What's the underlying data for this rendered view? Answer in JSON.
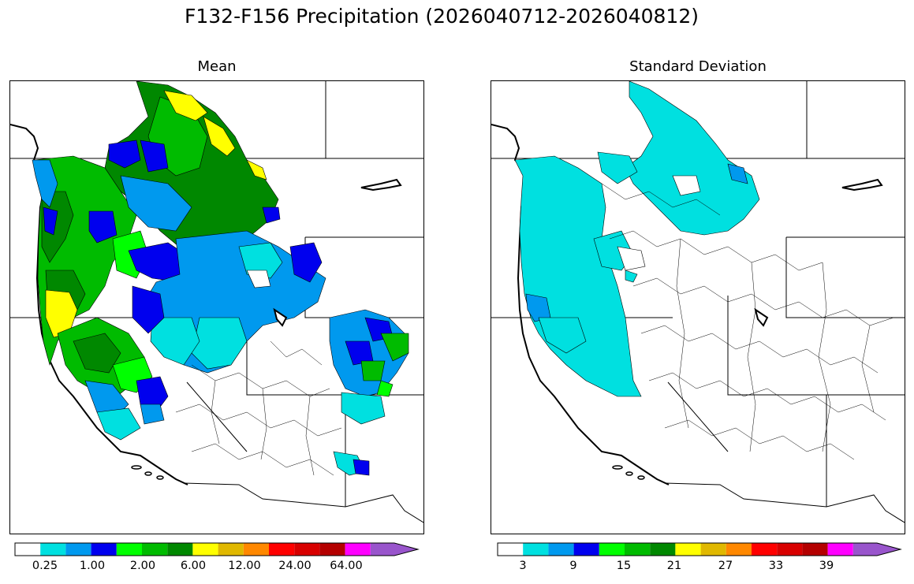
{
  "figure": {
    "title": "F132-F156 Precipitation (2026040712-2026040812)"
  },
  "panels": [
    {
      "title": "Mean"
    },
    {
      "title": "Standard Deviation"
    }
  ],
  "colorbars": {
    "colors": [
      "#ffffff",
      "#00e0e0",
      "#0099ee",
      "#0000ee",
      "#00ff00",
      "#00bb00",
      "#008800",
      "#ffff00",
      "#e0b800",
      "#ff8800",
      "#ff0000",
      "#d80000",
      "#b40000",
      "#ff00ff",
      "#9955cc"
    ],
    "mean_labels": [
      "0.25",
      "1.00",
      "2.00",
      "6.00",
      "12.00",
      "24.00",
      "64.00"
    ],
    "std_labels": [
      "3",
      "9",
      "15",
      "21",
      "27",
      "33",
      "39"
    ]
  },
  "legend_colors": {
    "cyan": "#00e0e0",
    "light_blue": "#0099ee",
    "blue": "#0000ee",
    "bright_green": "#00ff00",
    "green": "#00bb00",
    "dark_green": "#008800",
    "yellow": "#ffff00"
  }
}
